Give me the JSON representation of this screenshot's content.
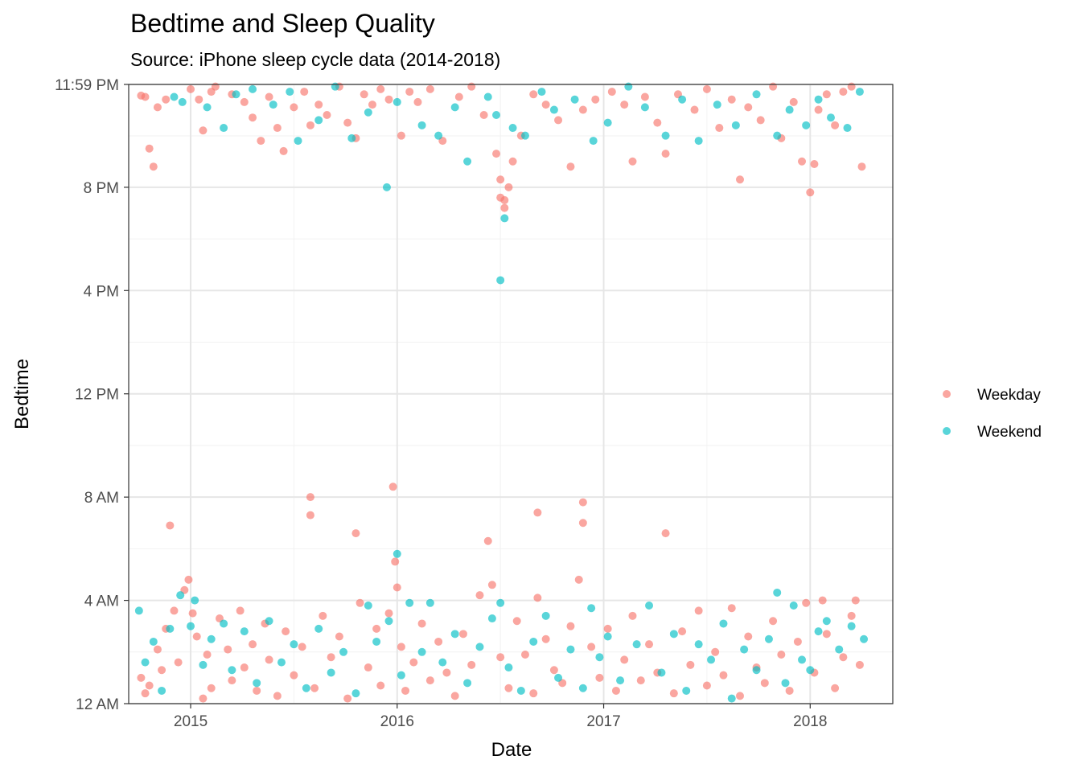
{
  "chart_data": {
    "type": "scatter",
    "title": "Bedtime and Sleep Quality",
    "subtitle": "Source: iPhone sleep cycle data (2014-2018)",
    "xlabel": "Date",
    "ylabel": "Bedtime",
    "xlim": [
      2014.7,
      2018.4
    ],
    "ylim": [
      0,
      23.983
    ],
    "x_ticks": [
      {
        "value": 2015,
        "label": "2015"
      },
      {
        "value": 2016,
        "label": "2016"
      },
      {
        "value": 2017,
        "label": "2017"
      },
      {
        "value": 2018,
        "label": "2018"
      }
    ],
    "y_ticks": [
      {
        "value": 0,
        "label": "12 AM"
      },
      {
        "value": 4,
        "label": "4 AM"
      },
      {
        "value": 8,
        "label": "8 AM"
      },
      {
        "value": 12,
        "label": "12 PM"
      },
      {
        "value": 16,
        "label": "4 PM"
      },
      {
        "value": 20,
        "label": "8 PM"
      },
      {
        "value": 23.983,
        "label": "11:59 PM"
      }
    ],
    "grid": true,
    "legend_position": "right",
    "series": [
      {
        "name": "Weekday",
        "color": "#F8766D",
        "points": [
          [
            2014.76,
            23.55
          ],
          [
            2014.78,
            23.5
          ],
          [
            2014.8,
            21.5
          ],
          [
            2014.82,
            20.8
          ],
          [
            2014.84,
            23.1
          ],
          [
            2014.88,
            23.4
          ],
          [
            2015.0,
            23.8
          ],
          [
            2015.04,
            23.4
          ],
          [
            2015.06,
            22.2
          ],
          [
            2015.1,
            23.7
          ],
          [
            2015.12,
            23.9
          ],
          [
            2015.2,
            23.6
          ],
          [
            2015.26,
            23.3
          ],
          [
            2015.3,
            22.7
          ],
          [
            2015.34,
            21.8
          ],
          [
            2015.38,
            23.5
          ],
          [
            2015.42,
            22.3
          ],
          [
            2015.45,
            21.4
          ],
          [
            2015.5,
            23.1
          ],
          [
            2015.55,
            23.7
          ],
          [
            2015.58,
            22.4
          ],
          [
            2015.62,
            23.2
          ],
          [
            2015.66,
            22.8
          ],
          [
            2015.72,
            23.9
          ],
          [
            2015.76,
            22.5
          ],
          [
            2015.8,
            21.9
          ],
          [
            2015.84,
            23.6
          ],
          [
            2015.88,
            23.2
          ],
          [
            2015.92,
            23.8
          ],
          [
            2015.96,
            23.4
          ],
          [
            2016.02,
            22.0
          ],
          [
            2016.06,
            23.7
          ],
          [
            2016.1,
            23.3
          ],
          [
            2016.16,
            23.8
          ],
          [
            2016.22,
            21.8
          ],
          [
            2016.3,
            23.5
          ],
          [
            2016.36,
            23.9
          ],
          [
            2016.42,
            22.8
          ],
          [
            2016.48,
            21.3
          ],
          [
            2016.5,
            20.3
          ],
          [
            2016.5,
            19.6
          ],
          [
            2016.52,
            19.5
          ],
          [
            2016.52,
            19.2
          ],
          [
            2016.54,
            20.0
          ],
          [
            2016.56,
            21.0
          ],
          [
            2016.6,
            22.0
          ],
          [
            2016.66,
            23.6
          ],
          [
            2016.72,
            23.2
          ],
          [
            2016.78,
            22.6
          ],
          [
            2016.84,
            20.8
          ],
          [
            2016.9,
            23.0
          ],
          [
            2016.96,
            23.4
          ],
          [
            2017.04,
            23.7
          ],
          [
            2017.1,
            23.2
          ],
          [
            2017.14,
            21.0
          ],
          [
            2017.2,
            23.5
          ],
          [
            2017.26,
            22.5
          ],
          [
            2017.3,
            21.3
          ],
          [
            2017.36,
            23.6
          ],
          [
            2017.44,
            23.0
          ],
          [
            2017.5,
            23.8
          ],
          [
            2017.56,
            22.3
          ],
          [
            2017.62,
            23.4
          ],
          [
            2017.66,
            20.3
          ],
          [
            2017.7,
            23.1
          ],
          [
            2017.76,
            22.6
          ],
          [
            2017.82,
            23.9
          ],
          [
            2017.86,
            21.9
          ],
          [
            2017.92,
            23.3
          ],
          [
            2017.96,
            21.0
          ],
          [
            2018.0,
            19.8
          ],
          [
            2018.02,
            20.9
          ],
          [
            2018.04,
            23.0
          ],
          [
            2018.08,
            23.6
          ],
          [
            2018.12,
            22.4
          ],
          [
            2018.16,
            23.7
          ],
          [
            2018.2,
            23.9
          ],
          [
            2018.25,
            20.8
          ],
          [
            2014.76,
            1.0
          ],
          [
            2014.78,
            0.4
          ],
          [
            2014.8,
            0.7
          ],
          [
            2014.84,
            2.1
          ],
          [
            2014.86,
            1.3
          ],
          [
            2014.88,
            2.9
          ],
          [
            2014.9,
            6.9
          ],
          [
            2014.92,
            3.6
          ],
          [
            2014.94,
            1.6
          ],
          [
            2014.97,
            4.4
          ],
          [
            2014.99,
            4.8
          ],
          [
            2015.01,
            3.5
          ],
          [
            2015.03,
            2.6
          ],
          [
            2015.06,
            0.2
          ],
          [
            2015.08,
            1.9
          ],
          [
            2015.1,
            0.6
          ],
          [
            2015.14,
            3.3
          ],
          [
            2015.18,
            2.1
          ],
          [
            2015.2,
            0.9
          ],
          [
            2015.24,
            3.6
          ],
          [
            2015.26,
            1.4
          ],
          [
            2015.3,
            2.3
          ],
          [
            2015.32,
            0.5
          ],
          [
            2015.36,
            3.1
          ],
          [
            2015.38,
            1.7
          ],
          [
            2015.42,
            0.3
          ],
          [
            2015.46,
            2.8
          ],
          [
            2015.5,
            1.1
          ],
          [
            2015.54,
            2.2
          ],
          [
            2015.58,
            7.3
          ],
          [
            2015.58,
            8.0
          ],
          [
            2015.6,
            0.6
          ],
          [
            2015.64,
            3.4
          ],
          [
            2015.68,
            1.8
          ],
          [
            2015.72,
            2.6
          ],
          [
            2015.76,
            0.2
          ],
          [
            2015.8,
            6.6
          ],
          [
            2015.82,
            3.9
          ],
          [
            2015.86,
            1.4
          ],
          [
            2015.9,
            2.9
          ],
          [
            2015.92,
            0.7
          ],
          [
            2015.96,
            3.5
          ],
          [
            2015.98,
            8.4
          ],
          [
            2015.99,
            5.5
          ],
          [
            2016.0,
            4.5
          ],
          [
            2016.02,
            2.2
          ],
          [
            2016.04,
            0.5
          ],
          [
            2016.08,
            1.6
          ],
          [
            2016.12,
            3.1
          ],
          [
            2016.16,
            0.9
          ],
          [
            2016.2,
            2.4
          ],
          [
            2016.24,
            1.2
          ],
          [
            2016.28,
            0.3
          ],
          [
            2016.32,
            2.7
          ],
          [
            2016.36,
            1.5
          ],
          [
            2016.4,
            4.2
          ],
          [
            2016.44,
            6.3
          ],
          [
            2016.46,
            4.6
          ],
          [
            2016.5,
            1.8
          ],
          [
            2016.54,
            0.6
          ],
          [
            2016.58,
            3.2
          ],
          [
            2016.62,
            1.9
          ],
          [
            2016.66,
            0.4
          ],
          [
            2016.68,
            4.1
          ],
          [
            2016.68,
            7.4
          ],
          [
            2016.72,
            2.5
          ],
          [
            2016.76,
            1.3
          ],
          [
            2016.8,
            0.8
          ],
          [
            2016.84,
            3.0
          ],
          [
            2016.88,
            4.8
          ],
          [
            2016.9,
            7.0
          ],
          [
            2016.9,
            7.8
          ],
          [
            2016.94,
            2.2
          ],
          [
            2016.98,
            1.0
          ],
          [
            2017.02,
            2.9
          ],
          [
            2017.06,
            0.5
          ],
          [
            2017.1,
            1.7
          ],
          [
            2017.14,
            3.4
          ],
          [
            2017.18,
            0.9
          ],
          [
            2017.22,
            2.3
          ],
          [
            2017.26,
            1.2
          ],
          [
            2017.3,
            6.6
          ],
          [
            2017.34,
            0.4
          ],
          [
            2017.38,
            2.8
          ],
          [
            2017.42,
            1.5
          ],
          [
            2017.46,
            3.6
          ],
          [
            2017.5,
            0.7
          ],
          [
            2017.54,
            2.0
          ],
          [
            2017.58,
            1.1
          ],
          [
            2017.62,
            3.7
          ],
          [
            2017.66,
            0.3
          ],
          [
            2017.7,
            2.6
          ],
          [
            2017.74,
            1.4
          ],
          [
            2017.78,
            0.8
          ],
          [
            2017.82,
            3.2
          ],
          [
            2017.86,
            1.9
          ],
          [
            2017.9,
            0.5
          ],
          [
            2017.94,
            2.4
          ],
          [
            2017.98,
            3.9
          ],
          [
            2018.02,
            1.2
          ],
          [
            2018.06,
            4.0
          ],
          [
            2018.08,
            2.7
          ],
          [
            2018.12,
            0.6
          ],
          [
            2018.16,
            1.8
          ],
          [
            2018.2,
            3.4
          ],
          [
            2018.22,
            4.0
          ],
          [
            2018.24,
            1.5
          ]
        ]
      },
      {
        "name": "Weekend",
        "color": "#00BFC4",
        "points": [
          [
            2014.92,
            23.5
          ],
          [
            2014.96,
            23.3
          ],
          [
            2015.08,
            23.1
          ],
          [
            2015.16,
            22.3
          ],
          [
            2015.22,
            23.6
          ],
          [
            2015.3,
            23.8
          ],
          [
            2015.4,
            23.2
          ],
          [
            2015.48,
            23.7
          ],
          [
            2015.52,
            21.8
          ],
          [
            2015.62,
            22.6
          ],
          [
            2015.7,
            23.9
          ],
          [
            2015.78,
            21.9
          ],
          [
            2015.86,
            22.9
          ],
          [
            2015.95,
            20.0
          ],
          [
            2016.0,
            23.3
          ],
          [
            2016.12,
            22.4
          ],
          [
            2016.2,
            22.0
          ],
          [
            2016.28,
            23.1
          ],
          [
            2016.34,
            21.0
          ],
          [
            2016.44,
            23.5
          ],
          [
            2016.48,
            22.8
          ],
          [
            2016.52,
            18.8
          ],
          [
            2016.56,
            22.3
          ],
          [
            2016.62,
            22.0
          ],
          [
            2016.7,
            23.7
          ],
          [
            2016.76,
            23.0
          ],
          [
            2016.86,
            23.4
          ],
          [
            2016.95,
            21.8
          ],
          [
            2017.02,
            22.5
          ],
          [
            2017.12,
            23.9
          ],
          [
            2017.2,
            23.1
          ],
          [
            2017.3,
            22.0
          ],
          [
            2017.38,
            23.4
          ],
          [
            2017.46,
            21.8
          ],
          [
            2017.55,
            23.2
          ],
          [
            2017.64,
            22.4
          ],
          [
            2017.74,
            23.6
          ],
          [
            2017.84,
            22.0
          ],
          [
            2017.9,
            23.0
          ],
          [
            2017.98,
            22.4
          ],
          [
            2018.04,
            23.4
          ],
          [
            2018.1,
            22.7
          ],
          [
            2018.18,
            22.3
          ],
          [
            2018.24,
            23.7
          ],
          [
            2016.5,
            16.4
          ],
          [
            2014.75,
            3.6
          ],
          [
            2014.78,
            1.6
          ],
          [
            2014.82,
            2.4
          ],
          [
            2014.86,
            0.5
          ],
          [
            2014.9,
            2.9
          ],
          [
            2014.95,
            4.2
          ],
          [
            2015.0,
            3.0
          ],
          [
            2015.02,
            4.0
          ],
          [
            2015.06,
            1.5
          ],
          [
            2015.1,
            2.5
          ],
          [
            2015.16,
            3.1
          ],
          [
            2015.2,
            1.3
          ],
          [
            2015.26,
            2.8
          ],
          [
            2015.32,
            0.8
          ],
          [
            2015.38,
            3.2
          ],
          [
            2015.44,
            1.6
          ],
          [
            2015.5,
            2.3
          ],
          [
            2015.56,
            0.6
          ],
          [
            2015.62,
            2.9
          ],
          [
            2015.68,
            1.2
          ],
          [
            2015.74,
            2.0
          ],
          [
            2015.8,
            0.4
          ],
          [
            2015.86,
            3.8
          ],
          [
            2015.9,
            2.4
          ],
          [
            2015.96,
            3.2
          ],
          [
            2016.0,
            5.8
          ],
          [
            2016.02,
            1.1
          ],
          [
            2016.06,
            3.9
          ],
          [
            2016.12,
            2.0
          ],
          [
            2016.16,
            3.9
          ],
          [
            2016.22,
            1.6
          ],
          [
            2016.28,
            2.7
          ],
          [
            2016.34,
            0.8
          ],
          [
            2016.4,
            2.2
          ],
          [
            2016.46,
            3.3
          ],
          [
            2016.5,
            3.9
          ],
          [
            2016.54,
            1.4
          ],
          [
            2016.6,
            0.5
          ],
          [
            2016.66,
            2.4
          ],
          [
            2016.72,
            3.4
          ],
          [
            2016.78,
            1.0
          ],
          [
            2016.84,
            2.1
          ],
          [
            2016.9,
            0.6
          ],
          [
            2016.94,
            3.7
          ],
          [
            2016.98,
            1.8
          ],
          [
            2017.02,
            2.6
          ],
          [
            2017.08,
            0.9
          ],
          [
            2017.16,
            2.3
          ],
          [
            2017.22,
            3.8
          ],
          [
            2017.28,
            1.2
          ],
          [
            2017.34,
            2.7
          ],
          [
            2017.4,
            0.5
          ],
          [
            2017.46,
            2.3
          ],
          [
            2017.52,
            1.7
          ],
          [
            2017.58,
            3.1
          ],
          [
            2017.62,
            0.2
          ],
          [
            2017.68,
            2.1
          ],
          [
            2017.74,
            1.3
          ],
          [
            2017.8,
            2.5
          ],
          [
            2017.84,
            4.3
          ],
          [
            2017.88,
            0.8
          ],
          [
            2017.92,
            3.8
          ],
          [
            2017.96,
            1.7
          ],
          [
            2018.0,
            1.3
          ],
          [
            2018.04,
            2.8
          ],
          [
            2018.08,
            3.2
          ],
          [
            2018.14,
            2.1
          ],
          [
            2018.2,
            3.0
          ],
          [
            2018.26,
            2.5
          ]
        ]
      }
    ]
  }
}
